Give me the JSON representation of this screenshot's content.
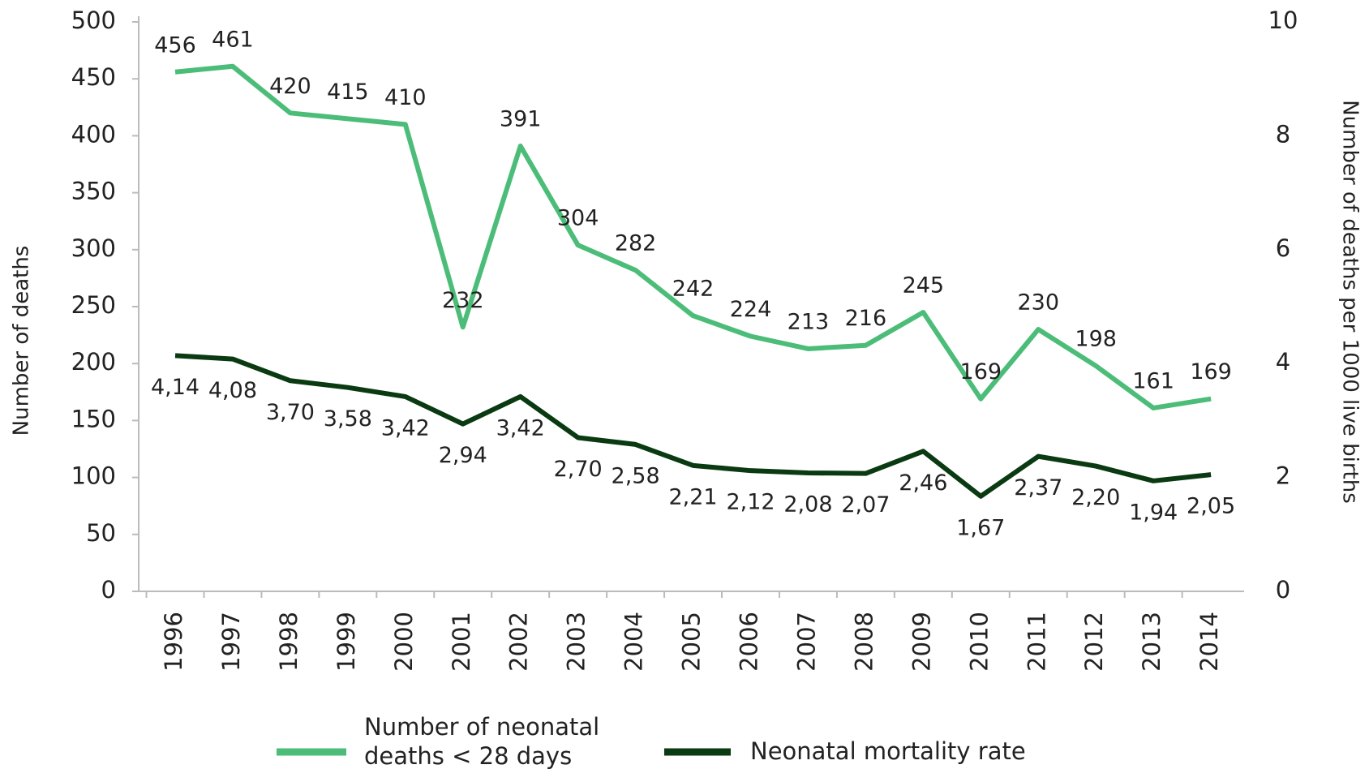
{
  "chart_data": {
    "type": "line",
    "categories": [
      "1996",
      "1997",
      "1998",
      "1999",
      "2000",
      "2001",
      "2002",
      "2003",
      "2004",
      "2005",
      "2006",
      "2007",
      "2008",
      "2009",
      "2010",
      "2011",
      "2012",
      "2013",
      "2014"
    ],
    "series": [
      {
        "name": "Number of neonatal deaths < 28 days",
        "color": "#4cbd78",
        "values": [
          456,
          461,
          420,
          415,
          410,
          232,
          391,
          304,
          282,
          242,
          224,
          213,
          216,
          245,
          169,
          230,
          198,
          161,
          169
        ]
      },
      {
        "name": "Neonatal mortality rate",
        "color": "#0a3a12",
        "axis": "y2",
        "values": [
          4.14,
          4.08,
          3.7,
          3.58,
          3.42,
          2.94,
          3.42,
          2.7,
          2.58,
          2.21,
          2.12,
          2.08,
          2.07,
          2.46,
          1.67,
          2.37,
          2.2,
          1.94,
          2.05
        ],
        "value_labels": [
          "4,14",
          "4,08",
          "3,70",
          "3,58",
          "3,42",
          "2,94",
          "3,42",
          "2,70",
          "2,58",
          "2,21",
          "2,12",
          "2,08",
          "2,07",
          "2,46",
          "1,67",
          "2,37",
          "2,20",
          "1,94",
          "2,05"
        ]
      }
    ],
    "y_label": "Number of deaths",
    "y2_label": "Number of deaths per 1000 live births",
    "ylim": [
      0,
      500
    ],
    "yticks": [
      0,
      50,
      100,
      150,
      200,
      250,
      300,
      350,
      400,
      450,
      500
    ],
    "y2lim": [
      0,
      10
    ],
    "y2ticks": [
      0,
      2,
      4,
      6,
      8,
      10
    ],
    "legend": "bottom"
  }
}
